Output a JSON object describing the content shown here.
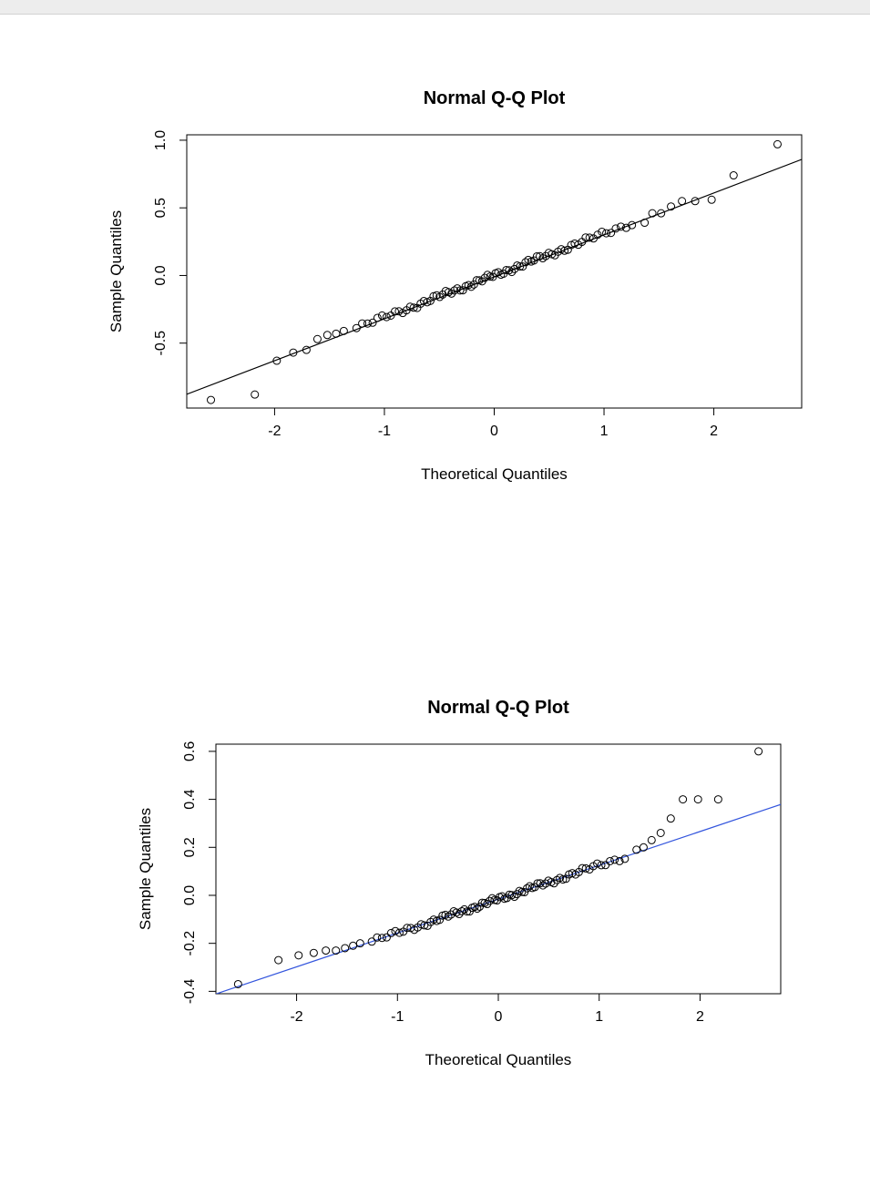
{
  "chart_data": [
    {
      "type": "scatter",
      "title": "Normal Q-Q Plot",
      "xlabel": "Theoretical Quantiles",
      "ylabel": "Sample Quantiles",
      "xlim": [
        -2.8,
        2.8
      ],
      "ylim": [
        -0.98,
        1.04
      ],
      "x_ticks": [
        "-2",
        "-1",
        "0",
        "1",
        "2"
      ],
      "y_ticks": [
        "-0.5",
        "0.0",
        "0.5",
        "1.0"
      ],
      "line_color": "#000000",
      "line": {
        "slope": 0.31,
        "intercept": -0.01
      },
      "lower_tail": [
        [
          -2.58,
          -0.92
        ],
        [
          -2.18,
          -0.88
        ],
        [
          -1.98,
          -0.63
        ],
        [
          -1.83,
          -0.57
        ],
        [
          -1.71,
          -0.55
        ],
        [
          -1.61,
          -0.47
        ],
        [
          -1.52,
          -0.44
        ],
        [
          -1.44,
          -0.43
        ],
        [
          -1.37,
          -0.41
        ]
      ],
      "upper_tail": [
        [
          1.37,
          0.39
        ],
        [
          1.44,
          0.46
        ],
        [
          1.52,
          0.46
        ],
        [
          1.61,
          0.51
        ],
        [
          1.71,
          0.55
        ],
        [
          1.83,
          0.55
        ],
        [
          1.98,
          0.56
        ],
        [
          2.18,
          0.74
        ],
        [
          2.58,
          0.97
        ]
      ],
      "body": {
        "n": 82,
        "slope": 0.31,
        "intercept": 0.0,
        "wiggle": 0.015
      }
    },
    {
      "type": "scatter",
      "title": "Normal Q-Q Plot",
      "xlabel": "Theoretical Quantiles",
      "ylabel": "Sample Quantiles",
      "xlim": [
        -2.8,
        2.8
      ],
      "ylim": [
        -0.41,
        0.63
      ],
      "x_ticks": [
        "-2",
        "-1",
        "0",
        "1",
        "2"
      ],
      "y_ticks": [
        "-0.4",
        "-0.2",
        "0.0",
        "0.2",
        "0.4",
        "0.6"
      ],
      "line_color": "#3355dd",
      "line": {
        "slope": 0.141,
        "intercept": -0.016
      },
      "lower_tail": [
        [
          -2.58,
          -0.37
        ],
        [
          -2.18,
          -0.27
        ],
        [
          -1.98,
          -0.25
        ],
        [
          -1.83,
          -0.24
        ],
        [
          -1.71,
          -0.23
        ],
        [
          -1.61,
          -0.23
        ],
        [
          -1.52,
          -0.22
        ],
        [
          -1.44,
          -0.21
        ],
        [
          -1.37,
          -0.2
        ]
      ],
      "upper_tail": [
        [
          1.37,
          0.19
        ],
        [
          1.44,
          0.2
        ],
        [
          1.52,
          0.23
        ],
        [
          1.61,
          0.26
        ],
        [
          1.71,
          0.32
        ],
        [
          1.83,
          0.4
        ],
        [
          1.98,
          0.4
        ],
        [
          2.18,
          0.4
        ],
        [
          2.58,
          0.6
        ]
      ],
      "body": {
        "n": 82,
        "slope": 0.141,
        "intercept": -0.016,
        "wiggle": 0.008
      }
    }
  ]
}
